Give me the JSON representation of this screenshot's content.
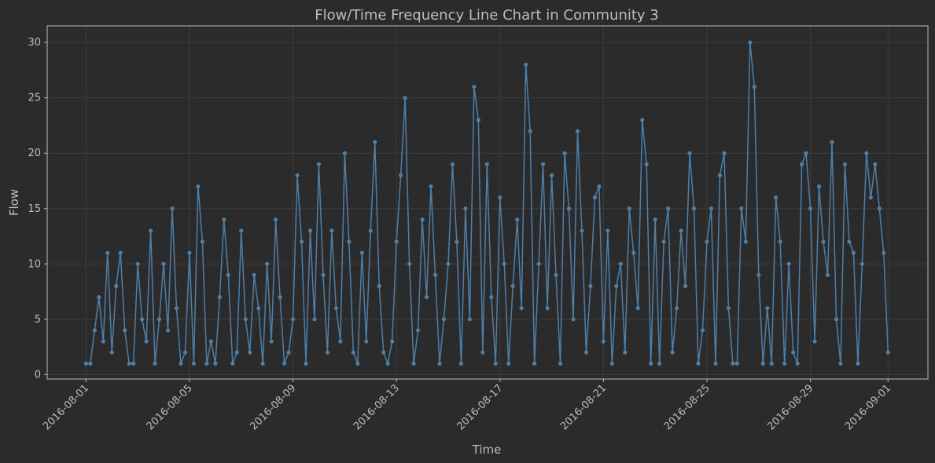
{
  "chart_data": {
    "type": "line",
    "title": "Flow/Time Frequency Line Chart in Community 3",
    "xlabel": "Time",
    "ylabel": "Flow",
    "color": "#4e7fa8",
    "grid": true,
    "xlim": [
      "2016-07-30T12:00",
      "2016-09-02T13:00"
    ],
    "xticks": [
      "2016-08-01",
      "2016-08-05",
      "2016-08-09",
      "2016-08-13",
      "2016-08-17",
      "2016-08-21",
      "2016-08-25",
      "2016-08-29",
      "2016-09-01"
    ],
    "ylim": [
      -0.4,
      31.5
    ],
    "yticks": [
      0,
      5,
      10,
      15,
      20,
      25,
      30
    ],
    "x": [
      "2016-08-01T00:00",
      "2016-08-01T04:00",
      "2016-08-01T08:00",
      "2016-08-01T12:00",
      "2016-08-01T16:00",
      "2016-08-01T20:00",
      "2016-08-02T00:00",
      "2016-08-02T04:00",
      "2016-08-02T08:00",
      "2016-08-02T12:00",
      "2016-08-02T16:00",
      "2016-08-02T20:00",
      "2016-08-03T00:00",
      "2016-08-03T04:00",
      "2016-08-03T08:00",
      "2016-08-03T12:00",
      "2016-08-03T16:00",
      "2016-08-03T20:00",
      "2016-08-04T00:00",
      "2016-08-04T04:00",
      "2016-08-04T08:00",
      "2016-08-04T12:00",
      "2016-08-04T16:00",
      "2016-08-04T20:00",
      "2016-08-05T00:00",
      "2016-08-05T04:00",
      "2016-08-05T08:00",
      "2016-08-05T12:00",
      "2016-08-05T16:00",
      "2016-08-05T20:00",
      "2016-08-06T00:00",
      "2016-08-06T04:00",
      "2016-08-06T08:00",
      "2016-08-06T12:00",
      "2016-08-06T16:00",
      "2016-08-06T20:00",
      "2016-08-07T00:00",
      "2016-08-07T04:00",
      "2016-08-07T08:00",
      "2016-08-07T12:00",
      "2016-08-07T16:00",
      "2016-08-07T20:00",
      "2016-08-08T00:00",
      "2016-08-08T04:00",
      "2016-08-08T08:00",
      "2016-08-08T12:00",
      "2016-08-08T16:00",
      "2016-08-08T20:00",
      "2016-08-09T00:00",
      "2016-08-09T04:00",
      "2016-08-09T08:00",
      "2016-08-09T12:00",
      "2016-08-09T16:00",
      "2016-08-09T20:00",
      "2016-08-10T00:00",
      "2016-08-10T04:00",
      "2016-08-10T08:00",
      "2016-08-10T12:00",
      "2016-08-10T16:00",
      "2016-08-10T20:00",
      "2016-08-11T00:00",
      "2016-08-11T04:00",
      "2016-08-11T08:00",
      "2016-08-11T12:00",
      "2016-08-11T16:00",
      "2016-08-11T20:00",
      "2016-08-12T00:00",
      "2016-08-12T04:00",
      "2016-08-12T08:00",
      "2016-08-12T12:00",
      "2016-08-12T16:00",
      "2016-08-12T20:00",
      "2016-08-13T00:00",
      "2016-08-13T04:00",
      "2016-08-13T08:00",
      "2016-08-13T12:00",
      "2016-08-13T16:00",
      "2016-08-13T20:00",
      "2016-08-14T00:00",
      "2016-08-14T04:00",
      "2016-08-14T08:00",
      "2016-08-14T12:00",
      "2016-08-14T16:00",
      "2016-08-14T20:00",
      "2016-08-15T00:00",
      "2016-08-15T04:00",
      "2016-08-15T08:00",
      "2016-08-15T12:00",
      "2016-08-15T16:00",
      "2016-08-15T20:00",
      "2016-08-16T00:00",
      "2016-08-16T04:00",
      "2016-08-16T08:00",
      "2016-08-16T12:00",
      "2016-08-16T16:00",
      "2016-08-16T20:00",
      "2016-08-17T00:00",
      "2016-08-17T04:00",
      "2016-08-17T08:00",
      "2016-08-17T12:00",
      "2016-08-17T16:00",
      "2016-08-17T20:00",
      "2016-08-18T00:00",
      "2016-08-18T04:00",
      "2016-08-18T08:00",
      "2016-08-18T12:00",
      "2016-08-18T16:00",
      "2016-08-18T20:00",
      "2016-08-19T00:00",
      "2016-08-19T04:00",
      "2016-08-19T08:00",
      "2016-08-19T12:00",
      "2016-08-19T16:00",
      "2016-08-19T20:00",
      "2016-08-20T00:00",
      "2016-08-20T04:00",
      "2016-08-20T08:00",
      "2016-08-20T12:00",
      "2016-08-20T16:00",
      "2016-08-20T20:00",
      "2016-08-21T00:00",
      "2016-08-21T04:00",
      "2016-08-21T08:00",
      "2016-08-21T12:00",
      "2016-08-21T16:00",
      "2016-08-21T20:00",
      "2016-08-22T00:00",
      "2016-08-22T04:00",
      "2016-08-22T08:00",
      "2016-08-22T12:00",
      "2016-08-22T16:00",
      "2016-08-22T20:00",
      "2016-08-23T00:00",
      "2016-08-23T04:00",
      "2016-08-23T08:00",
      "2016-08-23T12:00",
      "2016-08-23T16:00",
      "2016-08-23T20:00",
      "2016-08-24T00:00",
      "2016-08-24T04:00",
      "2016-08-24T08:00",
      "2016-08-24T12:00",
      "2016-08-24T16:00",
      "2016-08-24T20:00",
      "2016-08-25T00:00",
      "2016-08-25T04:00",
      "2016-08-25T08:00",
      "2016-08-25T12:00",
      "2016-08-25T16:00",
      "2016-08-25T20:00",
      "2016-08-26T00:00",
      "2016-08-26T04:00",
      "2016-08-26T08:00",
      "2016-08-26T12:00",
      "2016-08-26T16:00",
      "2016-08-26T20:00",
      "2016-08-27T00:00",
      "2016-08-27T04:00",
      "2016-08-27T08:00",
      "2016-08-27T12:00",
      "2016-08-27T16:00",
      "2016-08-27T20:00",
      "2016-08-28T00:00",
      "2016-08-28T04:00",
      "2016-08-28T08:00",
      "2016-08-28T12:00",
      "2016-08-28T16:00",
      "2016-08-28T20:00",
      "2016-08-29T00:00",
      "2016-08-29T04:00",
      "2016-08-29T08:00",
      "2016-08-29T12:00",
      "2016-08-29T16:00",
      "2016-08-29T20:00",
      "2016-08-30T00:00",
      "2016-08-30T04:00",
      "2016-08-30T08:00",
      "2016-08-30T12:00",
      "2016-08-30T16:00",
      "2016-08-30T20:00",
      "2016-08-31T00:00",
      "2016-08-31T04:00",
      "2016-08-31T08:00",
      "2016-08-31T12:00",
      "2016-08-31T16:00",
      "2016-08-31T20:00",
      "2016-09-01T00:00"
    ],
    "values": [
      1,
      1,
      4,
      7,
      3,
      11,
      2,
      8,
      11,
      4,
      1,
      1,
      10,
      5,
      3,
      13,
      1,
      5,
      10,
      4,
      15,
      6,
      1,
      2,
      11,
      1,
      17,
      12,
      1,
      3,
      1,
      7,
      14,
      9,
      1,
      2,
      13,
      5,
      2,
      9,
      6,
      1,
      10,
      3,
      14,
      7,
      1,
      2,
      5,
      18,
      12,
      1,
      13,
      5,
      19,
      9,
      2,
      13,
      6,
      3,
      20,
      12,
      2,
      1,
      11,
      3,
      13,
      21,
      8,
      2,
      1,
      3,
      12,
      18,
      25,
      10,
      1,
      4,
      14,
      7,
      17,
      9,
      1,
      5,
      10,
      19,
      12,
      1,
      15,
      5,
      26,
      23,
      2,
      19,
      7,
      1,
      16,
      10,
      1,
      8,
      14,
      6,
      28,
      22,
      1,
      10,
      19,
      6,
      18,
      9,
      1,
      20,
      15,
      5,
      22,
      13,
      2,
      8,
      16,
      17,
      3,
      13,
      1,
      8,
      10,
      2,
      15,
      11,
      6,
      23,
      19,
      1,
      14,
      1,
      12,
      15,
      2,
      6,
      13,
      8,
      20,
      15,
      1,
      4,
      12,
      15,
      1,
      18,
      20,
      6,
      1,
      1,
      15,
      12,
      30,
      26,
      9,
      1,
      6,
      1,
      16,
      12,
      1,
      10,
      2,
      1,
      19,
      20,
      15,
      3,
      17,
      12,
      9,
      21,
      5,
      1,
      19,
      12,
      11,
      1,
      10,
      20,
      16,
      19,
      15,
      11,
      2
    ]
  }
}
